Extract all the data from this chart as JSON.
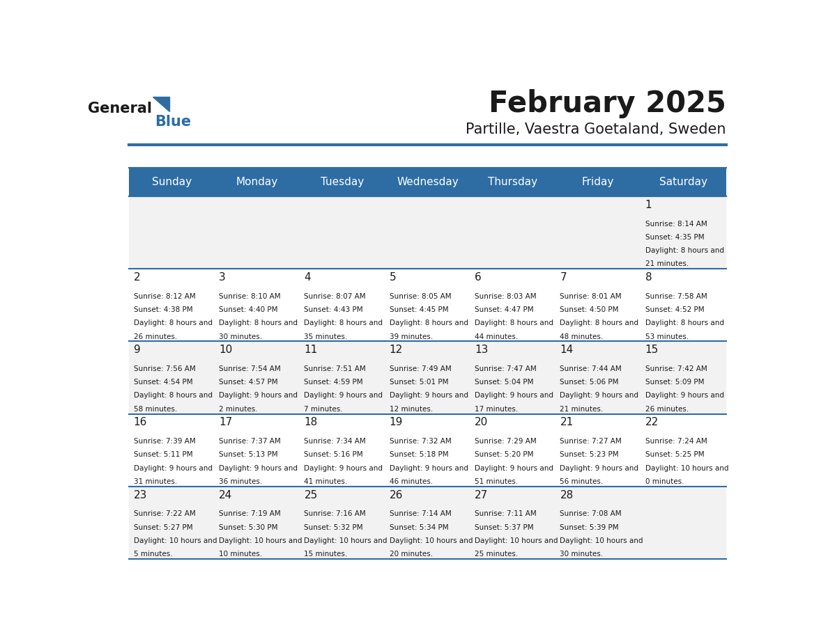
{
  "title": "February 2025",
  "subtitle": "Partille, Vaestra Goetaland, Sweden",
  "header_color": "#2E6DA4",
  "header_text_color": "#FFFFFF",
  "cell_bg_odd": "#F2F2F2",
  "cell_bg_even": "#FFFFFF",
  "day_headers": [
    "Sunday",
    "Monday",
    "Tuesday",
    "Wednesday",
    "Thursday",
    "Friday",
    "Saturday"
  ],
  "title_color": "#1a1a1a",
  "subtitle_color": "#1a1a1a",
  "text_color": "#1a1a1a",
  "line_color": "#2E6DA4",
  "logo_general_color": "#1a1a1a",
  "logo_blue_color": "#2E6DA4",
  "days": [
    {
      "day": 1,
      "col": 6,
      "row": 0,
      "sunrise": "8:14 AM",
      "sunset": "4:35 PM",
      "daylight": "8 hours and 21 minutes"
    },
    {
      "day": 2,
      "col": 0,
      "row": 1,
      "sunrise": "8:12 AM",
      "sunset": "4:38 PM",
      "daylight": "8 hours and 26 minutes"
    },
    {
      "day": 3,
      "col": 1,
      "row": 1,
      "sunrise": "8:10 AM",
      "sunset": "4:40 PM",
      "daylight": "8 hours and 30 minutes"
    },
    {
      "day": 4,
      "col": 2,
      "row": 1,
      "sunrise": "8:07 AM",
      "sunset": "4:43 PM",
      "daylight": "8 hours and 35 minutes"
    },
    {
      "day": 5,
      "col": 3,
      "row": 1,
      "sunrise": "8:05 AM",
      "sunset": "4:45 PM",
      "daylight": "8 hours and 39 minutes"
    },
    {
      "day": 6,
      "col": 4,
      "row": 1,
      "sunrise": "8:03 AM",
      "sunset": "4:47 PM",
      "daylight": "8 hours and 44 minutes"
    },
    {
      "day": 7,
      "col": 5,
      "row": 1,
      "sunrise": "8:01 AM",
      "sunset": "4:50 PM",
      "daylight": "8 hours and 48 minutes"
    },
    {
      "day": 8,
      "col": 6,
      "row": 1,
      "sunrise": "7:58 AM",
      "sunset": "4:52 PM",
      "daylight": "8 hours and 53 minutes"
    },
    {
      "day": 9,
      "col": 0,
      "row": 2,
      "sunrise": "7:56 AM",
      "sunset": "4:54 PM",
      "daylight": "8 hours and 58 minutes"
    },
    {
      "day": 10,
      "col": 1,
      "row": 2,
      "sunrise": "7:54 AM",
      "sunset": "4:57 PM",
      "daylight": "9 hours and 2 minutes"
    },
    {
      "day": 11,
      "col": 2,
      "row": 2,
      "sunrise": "7:51 AM",
      "sunset": "4:59 PM",
      "daylight": "9 hours and 7 minutes"
    },
    {
      "day": 12,
      "col": 3,
      "row": 2,
      "sunrise": "7:49 AM",
      "sunset": "5:01 PM",
      "daylight": "9 hours and 12 minutes"
    },
    {
      "day": 13,
      "col": 4,
      "row": 2,
      "sunrise": "7:47 AM",
      "sunset": "5:04 PM",
      "daylight": "9 hours and 17 minutes"
    },
    {
      "day": 14,
      "col": 5,
      "row": 2,
      "sunrise": "7:44 AM",
      "sunset": "5:06 PM",
      "daylight": "9 hours and 21 minutes"
    },
    {
      "day": 15,
      "col": 6,
      "row": 2,
      "sunrise": "7:42 AM",
      "sunset": "5:09 PM",
      "daylight": "9 hours and 26 minutes"
    },
    {
      "day": 16,
      "col": 0,
      "row": 3,
      "sunrise": "7:39 AM",
      "sunset": "5:11 PM",
      "daylight": "9 hours and 31 minutes"
    },
    {
      "day": 17,
      "col": 1,
      "row": 3,
      "sunrise": "7:37 AM",
      "sunset": "5:13 PM",
      "daylight": "9 hours and 36 minutes"
    },
    {
      "day": 18,
      "col": 2,
      "row": 3,
      "sunrise": "7:34 AM",
      "sunset": "5:16 PM",
      "daylight": "9 hours and 41 minutes"
    },
    {
      "day": 19,
      "col": 3,
      "row": 3,
      "sunrise": "7:32 AM",
      "sunset": "5:18 PM",
      "daylight": "9 hours and 46 minutes"
    },
    {
      "day": 20,
      "col": 4,
      "row": 3,
      "sunrise": "7:29 AM",
      "sunset": "5:20 PM",
      "daylight": "9 hours and 51 minutes"
    },
    {
      "day": 21,
      "col": 5,
      "row": 3,
      "sunrise": "7:27 AM",
      "sunset": "5:23 PM",
      "daylight": "9 hours and 56 minutes"
    },
    {
      "day": 22,
      "col": 6,
      "row": 3,
      "sunrise": "7:24 AM",
      "sunset": "5:25 PM",
      "daylight": "10 hours and 0 minutes"
    },
    {
      "day": 23,
      "col": 0,
      "row": 4,
      "sunrise": "7:22 AM",
      "sunset": "5:27 PM",
      "daylight": "10 hours and 5 minutes"
    },
    {
      "day": 24,
      "col": 1,
      "row": 4,
      "sunrise": "7:19 AM",
      "sunset": "5:30 PM",
      "daylight": "10 hours and 10 minutes"
    },
    {
      "day": 25,
      "col": 2,
      "row": 4,
      "sunrise": "7:16 AM",
      "sunset": "5:32 PM",
      "daylight": "10 hours and 15 minutes"
    },
    {
      "day": 26,
      "col": 3,
      "row": 4,
      "sunrise": "7:14 AM",
      "sunset": "5:34 PM",
      "daylight": "10 hours and 20 minutes"
    },
    {
      "day": 27,
      "col": 4,
      "row": 4,
      "sunrise": "7:11 AM",
      "sunset": "5:37 PM",
      "daylight": "10 hours and 25 minutes"
    },
    {
      "day": 28,
      "col": 5,
      "row": 4,
      "sunrise": "7:08 AM",
      "sunset": "5:39 PM",
      "daylight": "10 hours and 30 minutes"
    }
  ]
}
